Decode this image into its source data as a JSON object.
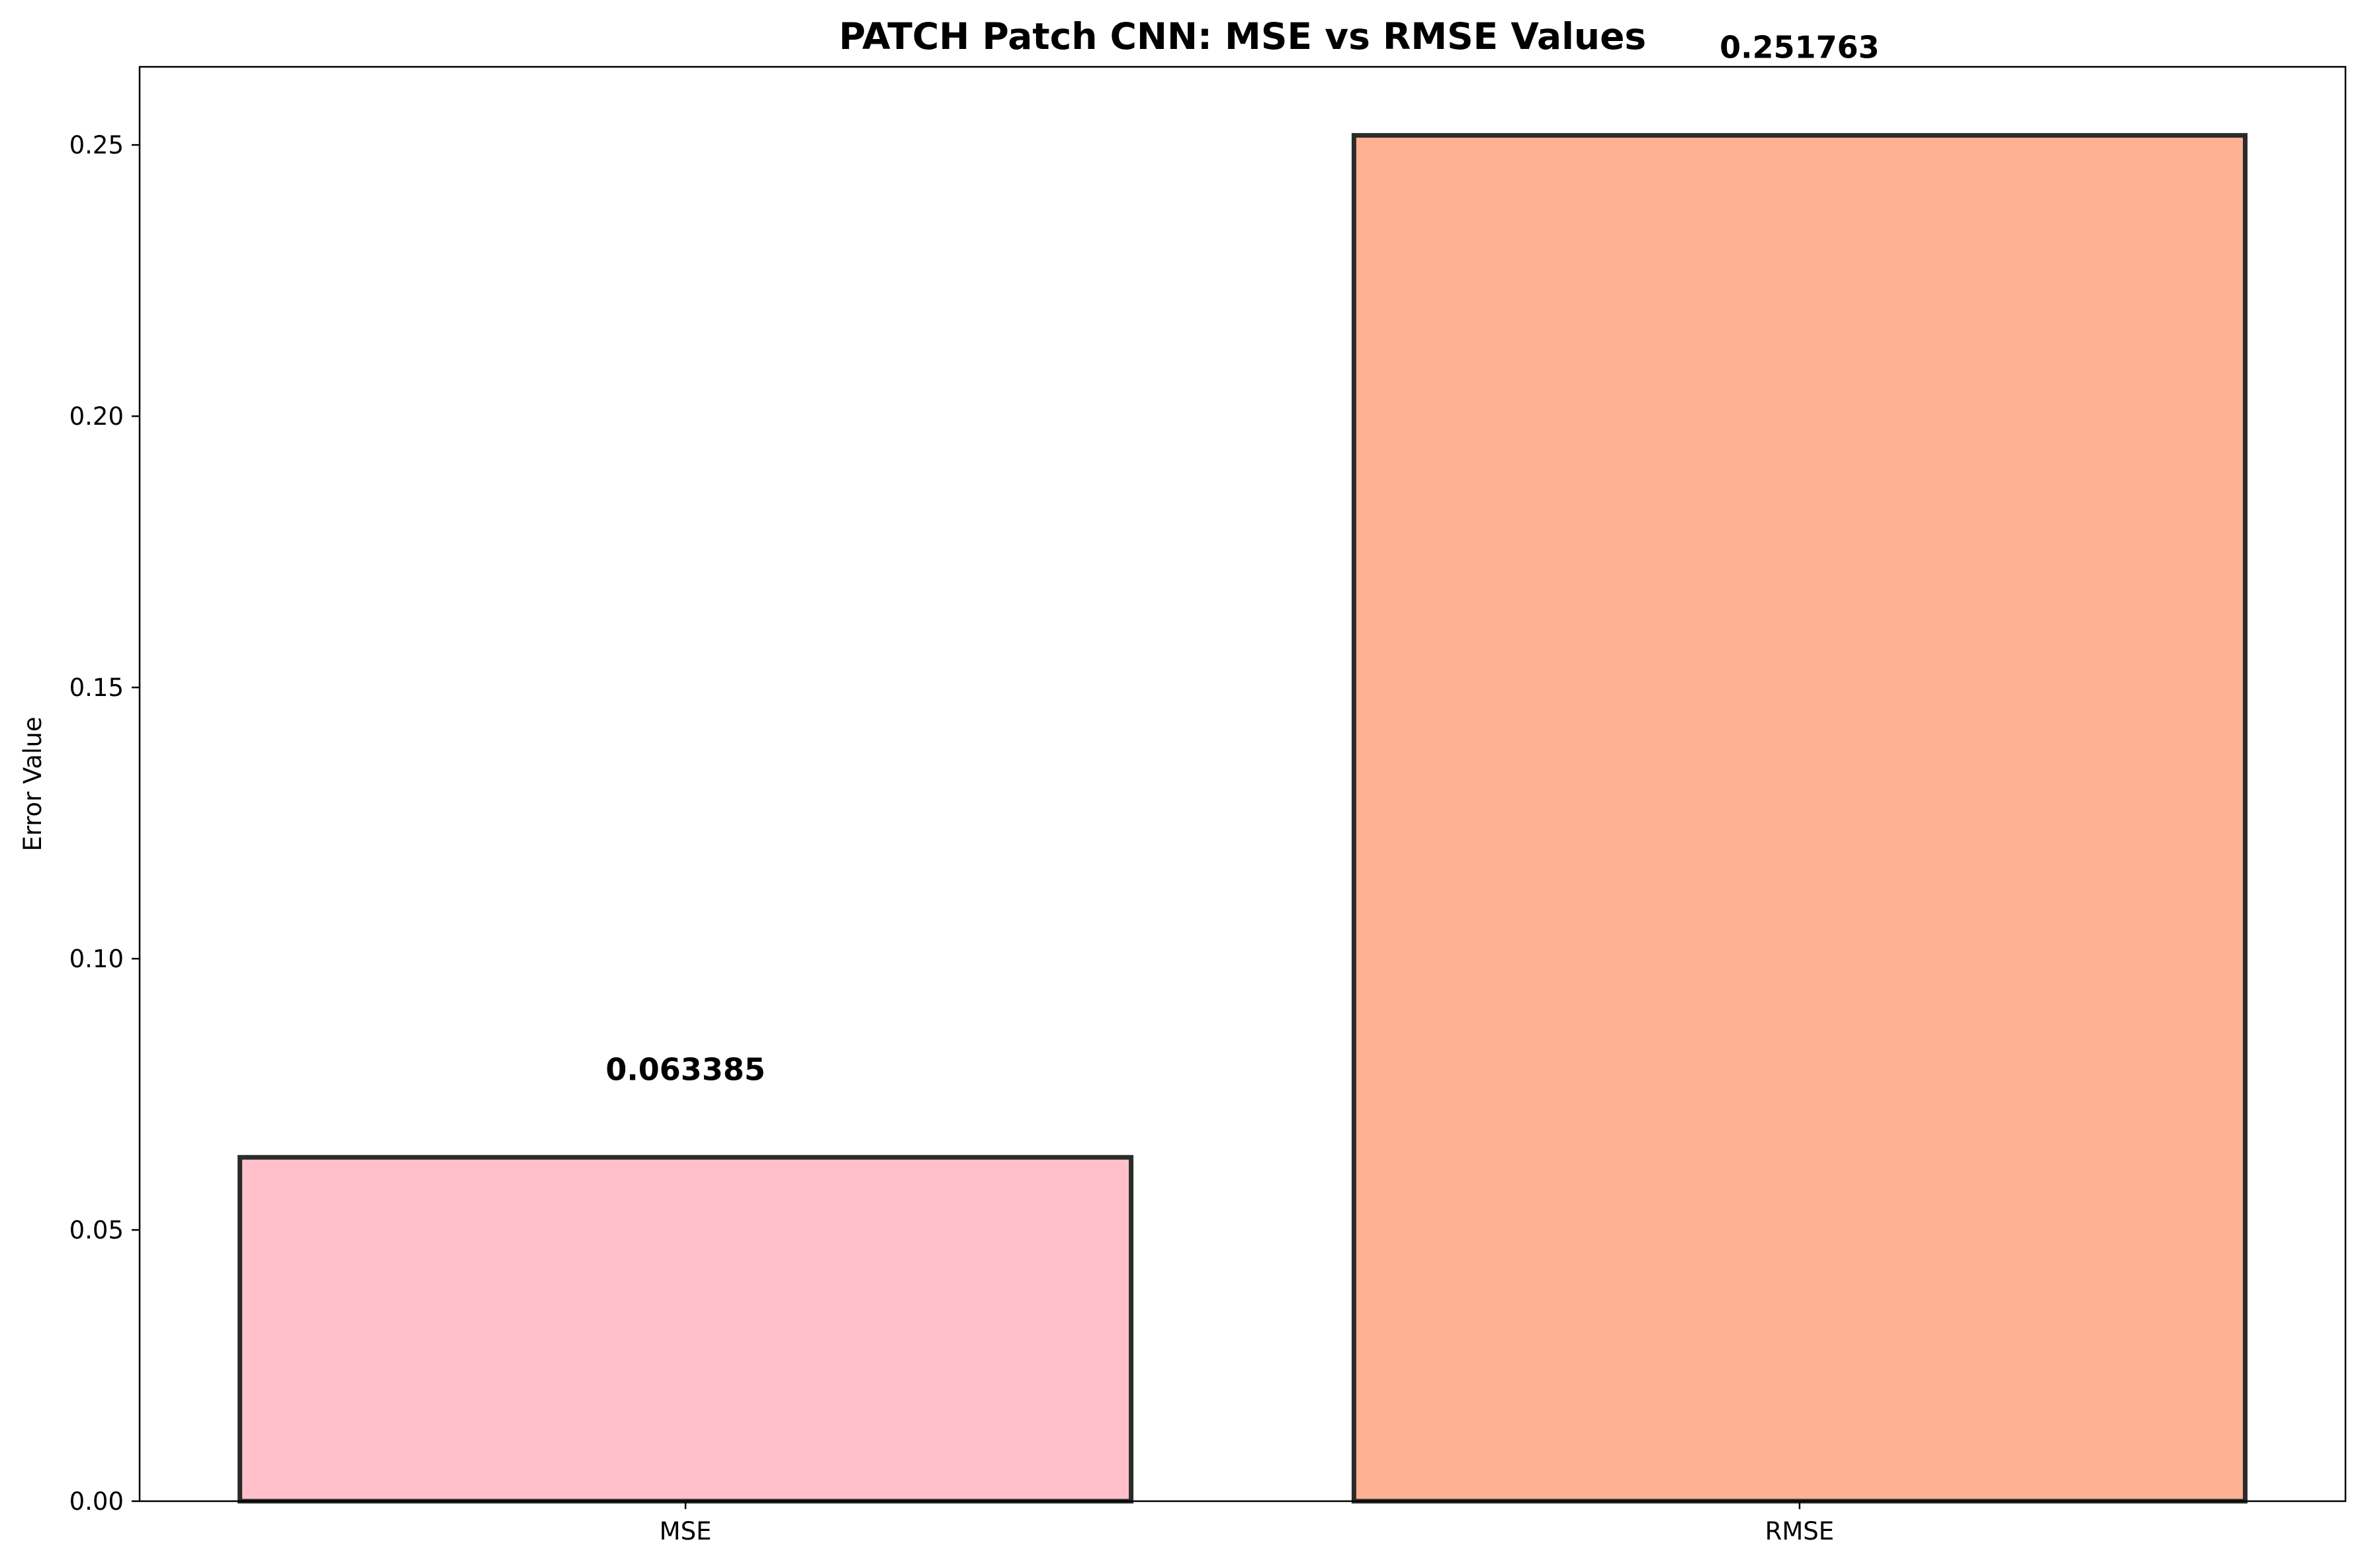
{
  "chart_data": {
    "type": "bar",
    "title": "PATCH Patch CNN: MSE vs RMSE Values",
    "xlabel": "",
    "ylabel": "Error Value",
    "categories": [
      "MSE",
      "RMSE"
    ],
    "values": [
      0.063385,
      0.251763
    ],
    "value_labels": [
      "0.063385",
      "0.251763"
    ],
    "bar_colors": [
      "#ffc0cb",
      "#ffb194"
    ],
    "bar_edge_color": "#2b2b2b",
    "ylim": [
      0,
      0.2644
    ],
    "yticks": [
      0.0,
      0.05,
      0.1,
      0.15,
      0.2,
      0.25
    ],
    "ytick_labels": [
      "0.00",
      "0.05",
      "0.10",
      "0.15",
      "0.20",
      "0.25"
    ],
    "grid": false,
    "legend": "none"
  }
}
